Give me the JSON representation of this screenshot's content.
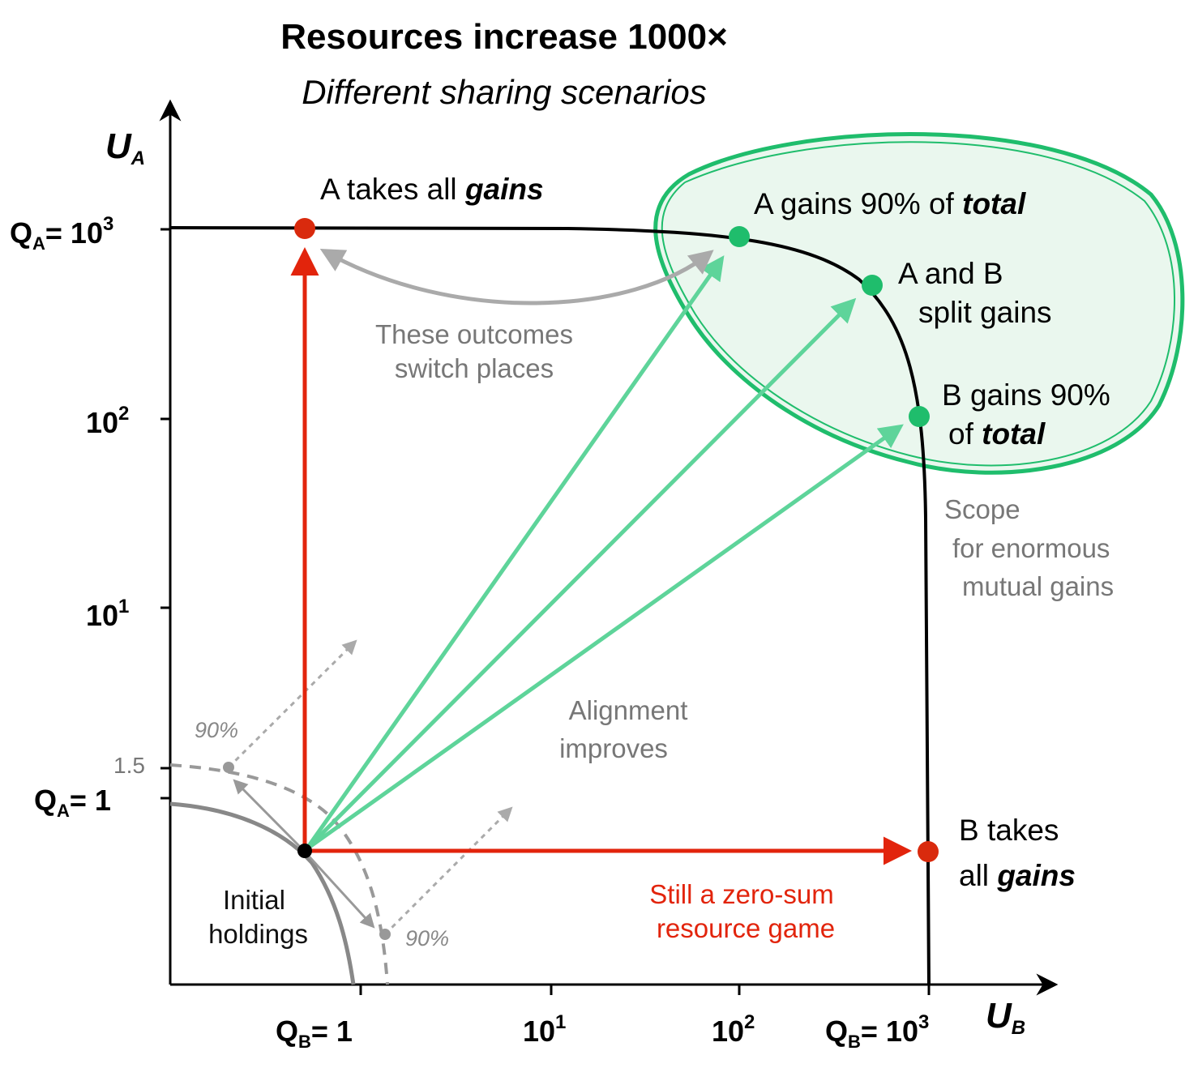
{
  "title": "Resources increase 1000×",
  "subtitle": "Different sharing scenarios",
  "axes": {
    "y_label": "U",
    "y_label_sub": "A",
    "x_label": "U",
    "x_label_sub": "B",
    "y_ticks": {
      "qa_top_prefix": "Q",
      "qa_top_sub": "A",
      "qa_top_eq": "= 10",
      "qa_top_exp": "3",
      "t2_base": "10",
      "t2_exp": "2",
      "t1_base": "10",
      "t1_exp": "1",
      "t15": "1.5",
      "qa1_prefix": "Q",
      "qa1_sub": "A",
      "qa1_eq": "= 1"
    },
    "x_ticks": {
      "qb1_prefix": "Q",
      "qb1_sub": "B",
      "qb1_eq": "= 1",
      "t1_base": "10",
      "t1_exp": "1",
      "t2_base": "10",
      "t2_exp": "2",
      "qb3_prefix": "Q",
      "qb3_sub": "B",
      "qb3_eq": "= 10",
      "qb3_exp": "3"
    }
  },
  "outcomes": {
    "a_takes_all_1": "A takes all ",
    "a_takes_all_2": "gains",
    "a_gains90_1": "A gains 90% of ",
    "a_gains90_2": "total",
    "split_1": "A and B",
    "split_2": "split gains",
    "b_gains90_1": "B gains 90%",
    "b_gains90_2": "of ",
    "b_gains90_3": "total",
    "b_takes_all_1": "B takes",
    "b_takes_all_2": "all ",
    "b_takes_all_3": "gains"
  },
  "notes": {
    "switch_1": "These outcomes",
    "switch_2": "switch places",
    "scope_1": "Scope",
    "scope_2": "for enormous",
    "scope_3": "mutual gains",
    "align_1": "Alignment",
    "align_2": "improves",
    "initial_1": "Initial",
    "initial_2": "holdings",
    "zero_sum_1": "Still a zero-sum",
    "zero_sum_2": "resource game",
    "pct_top": "90%",
    "pct_bottom": "90%"
  },
  "colors": {
    "red": "#e2240c",
    "green": "#1fbd6c",
    "green_light": "#5ed49a",
    "green_fill": "#eaf7ee",
    "gray": "#888888"
  }
}
